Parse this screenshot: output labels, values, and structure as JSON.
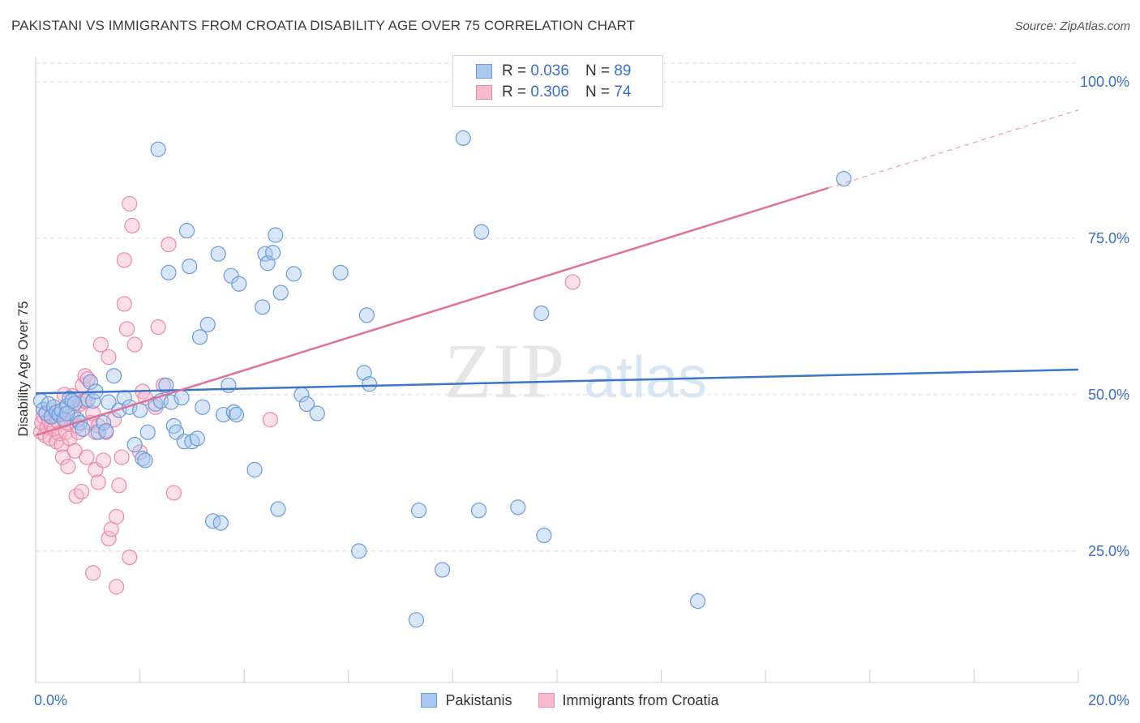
{
  "title": "PAKISTANI VS IMMIGRANTS FROM CROATIA DISABILITY AGE OVER 75 CORRELATION CHART",
  "source": "Source: ZipAtlas.com",
  "watermark": {
    "zip": "ZIP",
    "atlas": "atlas"
  },
  "legend": {
    "rows": [
      {
        "r_label": "R =",
        "r_value": "0.036",
        "n_label": "N =",
        "n_value": "89"
      },
      {
        "r_label": "R =",
        "r_value": "0.306",
        "n_label": "N =",
        "n_value": "74"
      }
    ]
  },
  "bottom_legend": [
    "Pakistanis",
    "Immigrants from Croatia"
  ],
  "colors": {
    "blue_fill": "#a9c8f0",
    "blue_stroke": "#6a9ad8",
    "blue_line": "#3a76c8",
    "pink_fill": "#f7b9cc",
    "pink_stroke": "#e889a8",
    "pink_line": "#e07098",
    "tick_label": "#3a6fc4",
    "grid": "#dcdcdc"
  },
  "chart_data": {
    "type": "scatter",
    "title": "PAKISTANI VS IMMIGRANTS FROM CROATIA DISABILITY AGE OVER 75 CORRELATION CHART",
    "xlabel": "",
    "ylabel": "Disability Age Over 75",
    "xlim": [
      0,
      20
    ],
    "ylim": [
      4,
      104
    ],
    "x_tick_labels": [
      {
        "value": 0,
        "label": "0.0%"
      },
      {
        "value": 20,
        "label": "20.0%"
      }
    ],
    "y_tick_labels": [
      {
        "value": 25,
        "label": "25.0%"
      },
      {
        "value": 50,
        "label": "50.0%"
      },
      {
        "value": 75,
        "label": "75.0%"
      },
      {
        "value": 100,
        "label": "100.0%"
      }
    ],
    "grid": true,
    "series": [
      {
        "name": "Pakistanis",
        "r": 0.036,
        "n": 89,
        "trend": {
          "x0": 0,
          "y0": 50.2,
          "x1": 20,
          "y1": 54.0,
          "dashed_from": null
        },
        "points": [
          [
            0.1,
            49.0
          ],
          [
            0.15,
            47.6
          ],
          [
            0.2,
            47.0
          ],
          [
            0.25,
            48.5
          ],
          [
            0.3,
            46.5
          ],
          [
            0.35,
            48.0
          ],
          [
            0.4,
            47.2
          ],
          [
            0.45,
            46.8
          ],
          [
            0.5,
            47.5
          ],
          [
            0.55,
            46.0
          ],
          [
            0.6,
            48.2
          ],
          [
            0.65,
            49.4
          ],
          [
            0.7,
            49.0
          ],
          [
            0.75,
            48.6
          ],
          [
            0.8,
            46.0
          ],
          [
            0.85,
            45.5
          ],
          [
            0.9,
            44.5
          ],
          [
            1.0,
            49.2
          ],
          [
            1.05,
            52.0
          ],
          [
            1.1,
            49.0
          ],
          [
            1.15,
            50.5
          ],
          [
            1.2,
            44.0
          ],
          [
            1.3,
            45.5
          ],
          [
            1.4,
            48.8
          ],
          [
            1.5,
            53.0
          ],
          [
            1.6,
            47.5
          ],
          [
            1.7,
            49.5
          ],
          [
            1.8,
            48.0
          ],
          [
            1.9,
            42.0
          ],
          [
            2.0,
            47.5
          ],
          [
            2.05,
            39.8
          ],
          [
            2.1,
            39.5
          ],
          [
            2.15,
            44.0
          ],
          [
            2.3,
            48.5
          ],
          [
            2.35,
            89.2
          ],
          [
            2.4,
            49.0
          ],
          [
            2.5,
            51.5
          ],
          [
            2.55,
            69.5
          ],
          [
            2.6,
            48.8
          ],
          [
            2.65,
            45.0
          ],
          [
            2.7,
            44.0
          ],
          [
            2.8,
            49.5
          ],
          [
            2.85,
            42.5
          ],
          [
            2.9,
            76.2
          ],
          [
            2.95,
            70.5
          ],
          [
            3.0,
            42.5
          ],
          [
            3.1,
            43.0
          ],
          [
            3.15,
            59.2
          ],
          [
            3.2,
            48.0
          ],
          [
            3.3,
            61.2
          ],
          [
            3.4,
            29.8
          ],
          [
            3.5,
            72.5
          ],
          [
            3.55,
            29.5
          ],
          [
            3.6,
            46.8
          ],
          [
            3.7,
            51.5
          ],
          [
            3.75,
            69.0
          ],
          [
            3.8,
            47.2
          ],
          [
            3.85,
            46.8
          ],
          [
            3.9,
            67.7
          ],
          [
            4.2,
            38.0
          ],
          [
            4.35,
            64.0
          ],
          [
            4.4,
            72.5
          ],
          [
            4.45,
            71.0
          ],
          [
            4.55,
            72.7
          ],
          [
            4.6,
            75.5
          ],
          [
            4.65,
            31.7
          ],
          [
            4.7,
            66.3
          ],
          [
            4.95,
            69.3
          ],
          [
            5.1,
            50.0
          ],
          [
            5.2,
            48.5
          ],
          [
            5.4,
            47.0
          ],
          [
            5.85,
            69.5
          ],
          [
            6.2,
            25.0
          ],
          [
            6.3,
            53.5
          ],
          [
            6.35,
            62.7
          ],
          [
            6.4,
            51.7
          ],
          [
            7.3,
            14.0
          ],
          [
            7.35,
            31.5
          ],
          [
            7.8,
            22.0
          ],
          [
            8.2,
            91.0
          ],
          [
            8.5,
            31.5
          ],
          [
            8.55,
            76.0
          ],
          [
            9.25,
            32.0
          ],
          [
            9.7,
            63.0
          ],
          [
            9.75,
            27.5
          ],
          [
            12.7,
            17.0
          ],
          [
            15.5,
            84.5
          ],
          [
            0.6,
            47.0
          ],
          [
            1.35,
            44.2
          ]
        ]
      },
      {
        "name": "Immigrants from Croatia",
        "r": 0.306,
        "n": 74,
        "trend": {
          "x0": 0,
          "y0": 43.5,
          "x1": 20,
          "y1": 95.5,
          "dashed_from": 15.2
        },
        "points": [
          [
            0.1,
            44.0
          ],
          [
            0.12,
            45.5
          ],
          [
            0.15,
            46.5
          ],
          [
            0.18,
            43.5
          ],
          [
            0.2,
            47.2
          ],
          [
            0.22,
            44.8
          ],
          [
            0.25,
            46.0
          ],
          [
            0.28,
            43.0
          ],
          [
            0.3,
            45.0
          ],
          [
            0.32,
            47.5
          ],
          [
            0.35,
            44.5
          ],
          [
            0.38,
            46.8
          ],
          [
            0.4,
            42.5
          ],
          [
            0.42,
            45.8
          ],
          [
            0.45,
            43.8
          ],
          [
            0.48,
            47.0
          ],
          [
            0.5,
            42.0
          ],
          [
            0.52,
            40.0
          ],
          [
            0.55,
            46.2
          ],
          [
            0.58,
            44.0
          ],
          [
            0.6,
            45.5
          ],
          [
            0.62,
            38.5
          ],
          [
            0.65,
            43.0
          ],
          [
            0.68,
            46.5
          ],
          [
            0.7,
            49.8
          ],
          [
            0.72,
            47.0
          ],
          [
            0.75,
            41.0
          ],
          [
            0.78,
            33.8
          ],
          [
            0.8,
            45.0
          ],
          [
            0.82,
            44.0
          ],
          [
            0.85,
            48.5
          ],
          [
            0.88,
            34.5
          ],
          [
            0.9,
            51.5
          ],
          [
            0.92,
            49.0
          ],
          [
            0.95,
            53.0
          ],
          [
            0.98,
            40.0
          ],
          [
            1.0,
            52.5
          ],
          [
            1.05,
            45.5
          ],
          [
            1.1,
            47.0
          ],
          [
            1.15,
            44.0
          ],
          [
            1.1,
            21.5
          ],
          [
            1.15,
            38.0
          ],
          [
            1.2,
            36.0
          ],
          [
            1.25,
            58.0
          ],
          [
            1.3,
            39.5
          ],
          [
            1.35,
            44.0
          ],
          [
            1.4,
            56.0
          ],
          [
            1.4,
            27.0
          ],
          [
            1.45,
            28.5
          ],
          [
            1.5,
            46.0
          ],
          [
            1.55,
            30.5
          ],
          [
            1.55,
            19.3
          ],
          [
            1.6,
            35.5
          ],
          [
            1.65,
            40.0
          ],
          [
            1.7,
            71.5
          ],
          [
            1.7,
            64.5
          ],
          [
            1.75,
            60.5
          ],
          [
            1.8,
            80.5
          ],
          [
            1.8,
            24.0
          ],
          [
            1.85,
            77.0
          ],
          [
            1.9,
            58.0
          ],
          [
            2.0,
            40.8
          ],
          [
            2.05,
            50.5
          ],
          [
            2.1,
            49.5
          ],
          [
            2.3,
            48.0
          ],
          [
            2.35,
            60.8
          ],
          [
            2.45,
            51.5
          ],
          [
            2.55,
            74.0
          ],
          [
            2.65,
            34.3
          ],
          [
            4.5,
            46.0
          ],
          [
            10.3,
            68.0
          ],
          [
            0.95,
            49.0
          ],
          [
            1.2,
            45.0
          ],
          [
            0.55,
            50.0
          ]
        ]
      }
    ]
  }
}
